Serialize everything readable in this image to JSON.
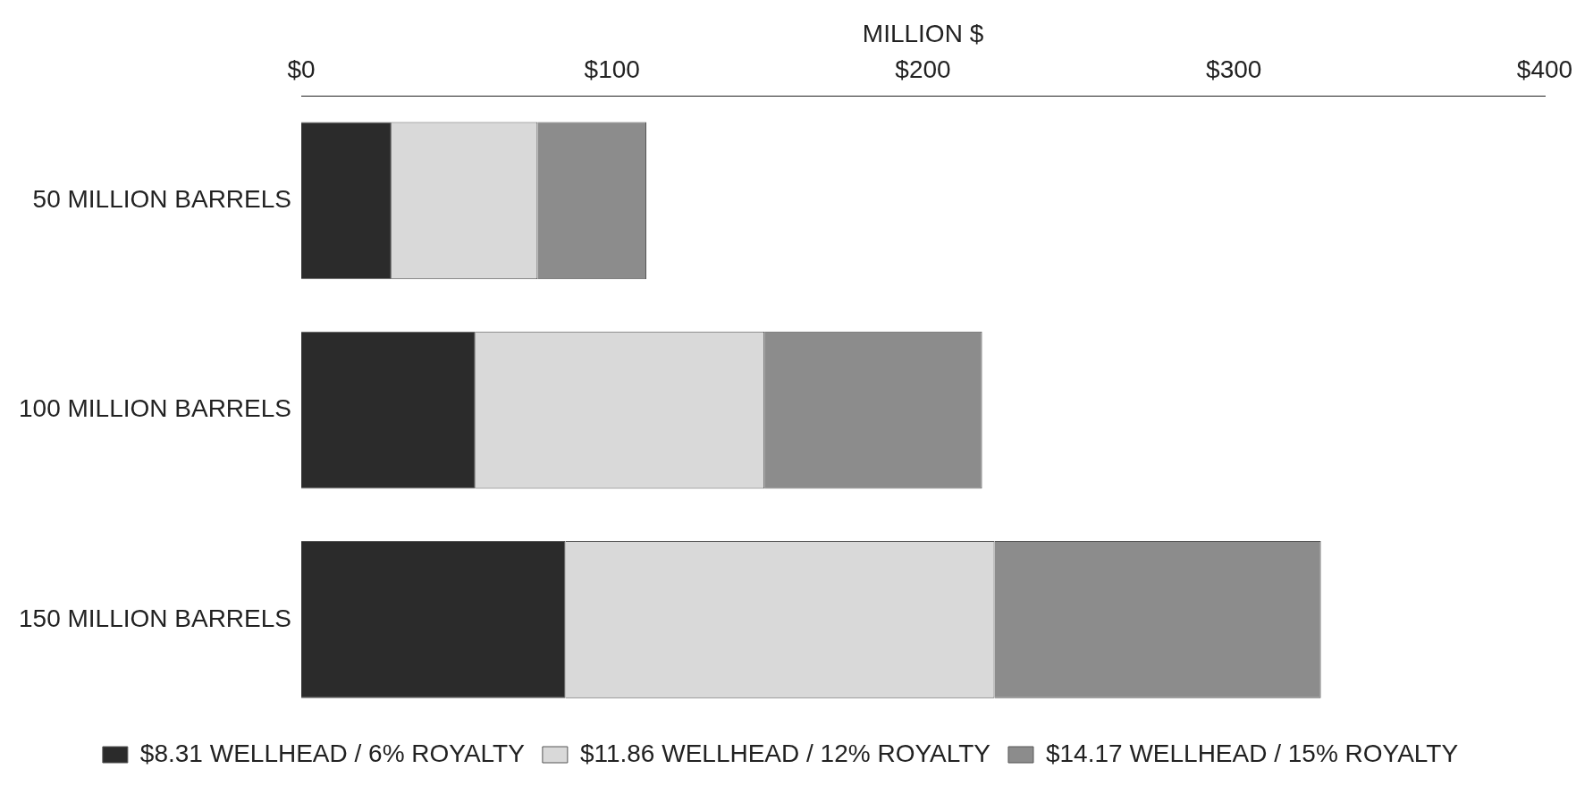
{
  "chart_data": {
    "type": "bar",
    "orientation": "horizontal",
    "stacked": true,
    "xlabel": "MILLION $",
    "categories": [
      "50 MILLION BARRELS",
      "100 MILLION BARRELS",
      "150 MILLION BARRELS"
    ],
    "series": [
      {
        "name": "$8.31 WELLHEAD / 6% ROYALTY",
        "color": "#2b2b2b",
        "values": [
          29,
          56,
          85
        ]
      },
      {
        "name": "$11.86 WELLHEAD / 12% ROYALTY",
        "color": "#d9d9d9",
        "values": [
          47,
          93,
          138
        ]
      },
      {
        "name": "$14.17 WELLHEAD / 15% ROYALTY",
        "color": "#8c8c8c",
        "values": [
          35,
          70,
          105
        ]
      }
    ],
    "xlim": [
      0,
      400
    ],
    "xticks": [
      {
        "value": 0,
        "label": "$0"
      },
      {
        "value": 100,
        "label": "$100"
      },
      {
        "value": 200,
        "label": "$200"
      },
      {
        "value": 300,
        "label": "$300"
      },
      {
        "value": 400,
        "label": "$400"
      }
    ],
    "grid": false,
    "legend": "bottom"
  }
}
